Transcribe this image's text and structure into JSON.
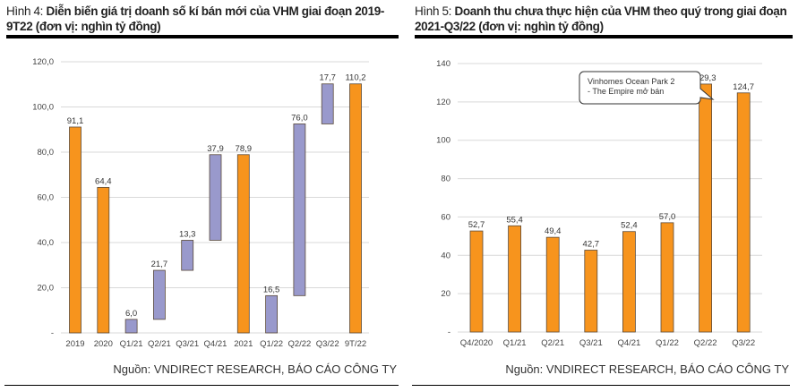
{
  "left": {
    "title_prefix": "Hình 4:",
    "title": " Diễn biến giá trị doanh số kí bán mới của VHM giai đoạn 2019-9T22 (đơn vị: nghìn tỷ đồng)",
    "source": "Nguồn: VNDIRECT RESEARCH, BÁO CÁO CÔNG TY"
  },
  "right": {
    "title_prefix": "Hình 5:",
    "title": " Doanh thu chưa thực hiện của VHM theo quý trong giai đoạn 2021-Q3/22 (đơn vị: nghìn tỷ đồng)",
    "source": "Nguồn: VNDIRECT RESEARCH, BÁO CÁO CÔNG TY"
  },
  "colors": {
    "total": "#F7941D",
    "increment": "#9999CC",
    "grid": "#D9D9D9"
  },
  "chart_data": [
    {
      "type": "bar",
      "subtype": "waterfall",
      "ylim": [
        0,
        120
      ],
      "yticks": [
        "-",
        "20,0",
        "40,0",
        "60,0",
        "80,0",
        "100,0",
        "120,0"
      ],
      "grid": true,
      "categories": [
        "2019",
        "2020",
        "Q1/21",
        "Q2/21",
        "Q3/21",
        "Q4/21",
        "2021",
        "Q1/22",
        "Q2/22",
        "Q3/22",
        "9T/22"
      ],
      "values": [
        91.1,
        64.4,
        6.0,
        21.7,
        13.3,
        37.9,
        78.9,
        16.5,
        76.0,
        17.7,
        110.2
      ],
      "labels": [
        "91,1",
        "64,4",
        "6,0",
        "21,7",
        "13,3",
        "37,9",
        "78,9",
        "16,5",
        "76,0",
        "17,7",
        "110,2"
      ],
      "kind": [
        "total",
        "total",
        "inc",
        "inc",
        "inc",
        "inc",
        "total",
        "inc",
        "inc",
        "inc",
        "total"
      ]
    },
    {
      "type": "bar",
      "ylim": [
        0,
        140
      ],
      "yticks": [
        "-",
        "20",
        "40",
        "60",
        "80",
        "100",
        "120",
        "140"
      ],
      "grid": true,
      "categories": [
        "Q4/2020",
        "Q1/21",
        "Q2/21",
        "Q3/21",
        "Q4/21",
        "Q1/22",
        "Q2/22",
        "Q3/22"
      ],
      "values": [
        52.7,
        55.4,
        49.4,
        42.7,
        52.4,
        57.0,
        129.3,
        124.7
      ],
      "labels": [
        "52,7",
        "55,4",
        "49,4",
        "42,7",
        "52,4",
        "57,0",
        "129,3",
        "124,7"
      ],
      "annotation": {
        "text_line1": "Vinhomes Ocean Park 2",
        "text_line2": "- The Empire mở bán",
        "target": "Q2/22"
      }
    }
  ]
}
